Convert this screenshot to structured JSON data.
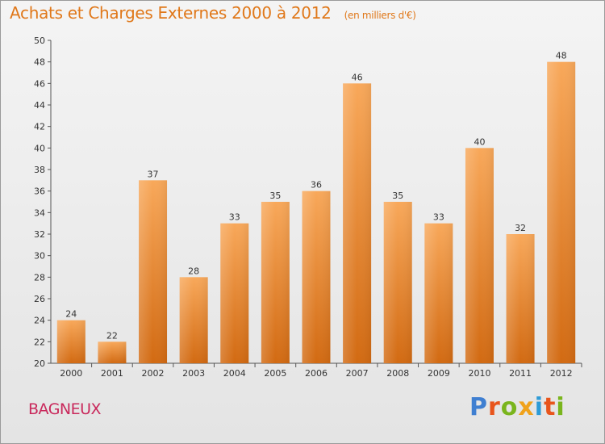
{
  "header": {
    "title": "Achats et Charges Externes 2000 à 2012",
    "unit": "(en milliers d'€)"
  },
  "footer": {
    "place": "BAGNEUX",
    "brand": "Proxiti",
    "brand_letters": [
      {
        "ch": "P",
        "color": "#3f7fd1"
      },
      {
        "ch": "r",
        "color": "#e8551c"
      },
      {
        "ch": "o",
        "color": "#7ab51d"
      },
      {
        "ch": "x",
        "color": "#f0a21b"
      },
      {
        "ch": "i",
        "color": "#2d9bd6"
      },
      {
        "ch": "t",
        "color": "#e8551c"
      },
      {
        "ch": "i",
        "color": "#7ab51d"
      }
    ]
  },
  "chart_data": {
    "type": "bar",
    "categories": [
      "2000",
      "2001",
      "2002",
      "2003",
      "2004",
      "2005",
      "2006",
      "2007",
      "2008",
      "2009",
      "2010",
      "2011",
      "2012"
    ],
    "values": [
      24,
      22,
      37,
      28,
      33,
      35,
      36,
      46,
      35,
      33,
      40,
      32,
      48
    ],
    "data_labels": [
      "24",
      "22",
      "37",
      "28",
      "33",
      "35",
      "36",
      "46",
      "35",
      "33",
      "40",
      "32",
      "48"
    ],
    "title": "Achats et Charges Externes 2000 à 2012",
    "xlabel": "",
    "ylabel": "",
    "ylim": [
      20,
      50
    ],
    "yticks": [
      "20",
      "22",
      "24",
      "26",
      "28",
      "30",
      "32",
      "34",
      "36",
      "38",
      "40",
      "42",
      "44",
      "46",
      "48",
      "50"
    ],
    "grid": false,
    "bar_color_top": "#f8a85a",
    "bar_color_bottom": "#d26a12"
  }
}
